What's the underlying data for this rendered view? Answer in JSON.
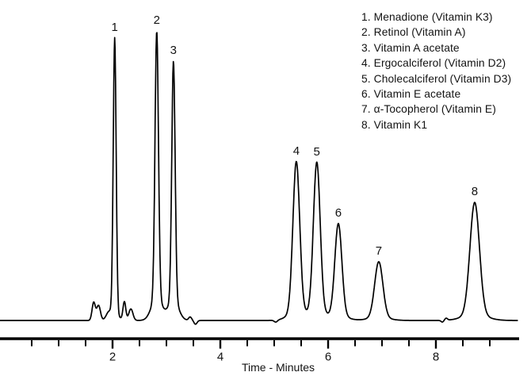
{
  "page": {
    "background_color": "#ffffff",
    "text_color": "#131313",
    "trace_color": "#000000"
  },
  "axis_title": "Time - Minutes",
  "chart_data": {
    "type": "line",
    "title": "",
    "xlabel": "Time - Minutes",
    "ylabel": "",
    "grid": false,
    "legend_position": "top-right",
    "x_axis": {
      "unit": "minutes",
      "range": [
        0,
        9.6
      ],
      "major_ticks": [
        2,
        4,
        6,
        8
      ],
      "major_tick_labels": [
        "2",
        "4",
        "6",
        "8"
      ],
      "minor_ticks": [
        0.5,
        1,
        1.5,
        2.5,
        3,
        3.5,
        4.5,
        5,
        5.5,
        6.5,
        7,
        7.5,
        8.5,
        9
      ]
    },
    "y_axis": {
      "visible": false
    },
    "peaks": [
      {
        "number": 1,
        "name": "Menadione (Vitamin K3)",
        "retention_time_min": 2.04,
        "relative_height_pct": 97.5,
        "sigma_min": 0.027,
        "tail_fraction": 0.02,
        "tail_sigma_mult": 3.0
      },
      {
        "number": 2,
        "name": "Retinol (Vitamin A)",
        "retention_time_min": 2.82,
        "relative_height_pct": 100.0,
        "sigma_min": 0.032,
        "tail_fraction": 0.08,
        "tail_sigma_mult": 3.0
      },
      {
        "number": 3,
        "name": "Vitamin A acetate",
        "retention_time_min": 3.13,
        "relative_height_pct": 89.6,
        "sigma_min": 0.031,
        "tail_fraction": 0.08,
        "tail_sigma_mult": 3.0
      },
      {
        "number": 4,
        "name": "Ergocalciferol (Vitamin D2)",
        "retention_time_min": 5.41,
        "relative_height_pct": 54.8,
        "sigma_min": 0.063,
        "tail_fraction": 0.05,
        "tail_sigma_mult": 2.5
      },
      {
        "number": 5,
        "name": "Cholecalciferol (Vitamin D3)",
        "retention_time_min": 5.79,
        "relative_height_pct": 54.5,
        "sigma_min": 0.063,
        "tail_fraction": 0.05,
        "tail_sigma_mult": 2.5
      },
      {
        "number": 6,
        "name": "Vitamin E acetate",
        "retention_time_min": 6.19,
        "relative_height_pct": 33.4,
        "sigma_min": 0.065,
        "tail_fraction": 0.05,
        "tail_sigma_mult": 2.5
      },
      {
        "number": 7,
        "name": "α-Tocopherol (Vitamin E)",
        "retention_time_min": 6.94,
        "relative_height_pct": 20.3,
        "sigma_min": 0.076,
        "tail_fraction": 0.05,
        "tail_sigma_mult": 2.5
      },
      {
        "number": 8,
        "name": "Vitamin K1",
        "retention_time_min": 8.72,
        "relative_height_pct": 40.8,
        "sigma_min": 0.088,
        "tail_fraction": 0.05,
        "tail_sigma_mult": 2.5
      }
    ],
    "legend_number_separator": ". ",
    "baseline_features": [
      {
        "time_min": 1.65,
        "height_pct": 6.2,
        "sigma_min": 0.03
      },
      {
        "time_min": 1.74,
        "height_pct": 5.2,
        "sigma_min": 0.035
      },
      {
        "time_min": 1.93,
        "height_pct": 2.4,
        "sigma_min": 0.05
      },
      {
        "time_min": 2.22,
        "height_pct": 6.4,
        "sigma_min": 0.026
      },
      {
        "time_min": 2.34,
        "height_pct": 4.0,
        "sigma_min": 0.038
      },
      {
        "time_min": 3.44,
        "height_pct": 1.2,
        "sigma_min": 0.028
      },
      {
        "time_min": 3.54,
        "height_pct": -1.3,
        "sigma_min": 0.028
      },
      {
        "time_min": 5.03,
        "height_pct": -0.7,
        "sigma_min": 0.03
      },
      {
        "time_min": 8.12,
        "height_pct": -0.6,
        "sigma_min": 0.025
      },
      {
        "time_min": 8.19,
        "height_pct": 0.7,
        "sigma_min": 0.025
      }
    ]
  }
}
